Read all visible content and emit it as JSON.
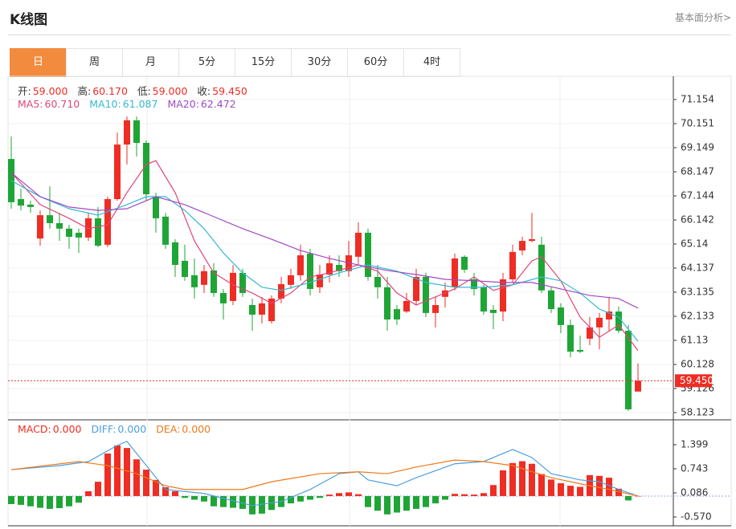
{
  "header": {
    "title": "K线图",
    "link": "基本面分析>"
  },
  "tabs": {
    "items": [
      "日",
      "周",
      "月",
      "5分",
      "15分",
      "30分",
      "60分",
      "4时"
    ],
    "active": 0
  },
  "chart_data": [
    {
      "type": "candlestick",
      "info": [
        {
          "label": "开:",
          "value": "59.000"
        },
        {
          "label": "高:",
          "value": "60.170"
        },
        {
          "label": "低:",
          "value": "59.000"
        },
        {
          "label": "收:",
          "value": "59.450"
        }
      ],
      "up_color": "#ee2d24",
      "down_color": "#1fa536",
      "open": [
        68.68,
        67.01,
        66.78,
        65.37,
        66.34,
        66.01,
        65.78,
        65.61,
        65.41,
        66.21,
        65.11,
        67.01,
        69.28,
        70.29,
        69.35,
        67.11,
        66.28,
        65.21,
        64.44,
        63.84,
        63.44,
        64.04,
        63.1,
        62.77,
        63.94,
        62.6,
        62.2,
        61.93,
        62.87,
        63.44,
        63.84,
        64.74,
        63.34,
        63.87,
        64.27,
        64.01,
        64.61,
        65.61,
        63.77,
        63.34,
        62.43,
        62.33,
        62.77,
        63.77,
        62.27,
        62.94,
        63.34,
        64.61,
        63.67,
        63.34,
        62.4,
        62.33,
        63.67,
        64.87,
        65.27,
        65.11,
        63.21,
        62.5,
        61.77,
        60.73,
        61.2,
        61.67,
        62.0,
        62.33,
        61.53,
        59.0
      ],
      "high": [
        69.62,
        67.45,
        66.94,
        66.54,
        67.54,
        66.44,
        65.94,
        65.78,
        66.44,
        66.68,
        67.11,
        69.78,
        70.45,
        70.45,
        69.45,
        67.28,
        66.44,
        65.34,
        65.11,
        64.54,
        64.27,
        64.34,
        63.27,
        64.27,
        64.11,
        62.87,
        62.94,
        63.0,
        63.77,
        64.11,
        65.11,
        64.94,
        64.27,
        64.67,
        64.67,
        65.27,
        66.04,
        65.78,
        64.27,
        63.77,
        62.6,
        63.1,
        64.11,
        63.94,
        62.94,
        63.54,
        64.74,
        64.67,
        63.94,
        63.44,
        62.6,
        63.94,
        65.11,
        65.44,
        66.44,
        65.44,
        63.34,
        62.67,
        62.0,
        61.33,
        62.1,
        62.27,
        62.94,
        62.54,
        61.77,
        60.17
      ],
      "low": [
        66.61,
        66.54,
        66.44,
        65.07,
        65.78,
        65.27,
        64.94,
        64.77,
        65.27,
        65.01,
        65.01,
        66.94,
        68.45,
        68.78,
        66.94,
        65.61,
        64.94,
        63.77,
        63.61,
        62.87,
        63.1,
        62.94,
        62.0,
        62.6,
        62.94,
        61.53,
        61.83,
        61.83,
        62.67,
        63.27,
        63.61,
        63.0,
        63.1,
        63.54,
        63.77,
        63.77,
        64.27,
        63.61,
        62.87,
        61.53,
        61.77,
        62.27,
        62.6,
        62.1,
        61.67,
        62.5,
        63.21,
        63.94,
        63.0,
        62.2,
        61.6,
        61.93,
        63.54,
        64.67,
        65.21,
        63.1,
        62.27,
        61.43,
        60.43,
        60.6,
        60.93,
        60.76,
        61.53,
        61.43,
        58.19,
        59.0
      ],
      "close": [
        66.88,
        66.74,
        66.68,
        66.34,
        66.01,
        65.78,
        65.44,
        65.41,
        66.21,
        65.07,
        67.01,
        69.28,
        70.29,
        69.35,
        67.21,
        66.21,
        65.11,
        64.27,
        63.77,
        63.34,
        64.01,
        63.1,
        62.67,
        63.94,
        63.1,
        62.2,
        62.67,
        62.87,
        63.47,
        63.84,
        64.67,
        63.27,
        63.87,
        64.34,
        64.01,
        64.67,
        65.61,
        63.77,
        63.34,
        62.0,
        62.0,
        62.77,
        63.77,
        62.27,
        62.6,
        63.21,
        64.54,
        64.07,
        63.27,
        62.33,
        62.27,
        63.67,
        64.81,
        65.27,
        65.34,
        63.21,
        62.43,
        61.77,
        60.66,
        60.66,
        61.67,
        62.07,
        62.33,
        61.53,
        58.26,
        59.45
      ],
      "series": [
        {
          "name": "MA5:",
          "current": "60.710",
          "color": "#e0457b",
          "x": [
            0,
            3,
            6,
            8,
            10,
            12,
            14,
            15,
            17,
            19,
            21,
            23,
            25,
            27,
            29,
            31,
            33,
            36,
            38,
            40,
            42,
            44,
            46,
            48,
            50,
            52,
            54,
            55,
            57,
            59,
            61,
            63,
            65
          ],
          "values": [
            68.11,
            66.78,
            66.21,
            65.78,
            65.94,
            67.28,
            68.45,
            68.61,
            67.28,
            65.27,
            63.94,
            63.44,
            63.1,
            62.67,
            63.1,
            63.77,
            63.94,
            64.27,
            64.01,
            63.1,
            62.6,
            62.94,
            63.27,
            63.77,
            63.21,
            63.44,
            64.44,
            64.61,
            63.61,
            62.1,
            61.26,
            61.77,
            60.71
          ]
        },
        {
          "name": "MA10:",
          "current": "61.087",
          "color": "#35b9d1",
          "x": [
            0,
            3,
            6,
            9,
            12,
            14,
            16,
            18,
            20,
            22,
            24,
            26,
            28,
            31,
            34,
            37,
            40,
            43,
            46,
            49,
            52,
            55,
            57,
            59,
            61,
            63,
            65
          ],
          "values": [
            67.78,
            67.11,
            66.61,
            66.34,
            66.78,
            67.11,
            67.11,
            66.54,
            65.78,
            64.77,
            63.94,
            63.34,
            63.21,
            63.54,
            63.94,
            64.27,
            64.01,
            63.54,
            63.34,
            63.34,
            63.44,
            63.77,
            63.61,
            63.1,
            62.43,
            62.1,
            61.087
          ]
        },
        {
          "name": "MA20:",
          "current": "62.472",
          "color": "#a149c6",
          "x": [
            0,
            3,
            6,
            9,
            12,
            15,
            18,
            21,
            24,
            27,
            30,
            33,
            36,
            39,
            42,
            45,
            48,
            51,
            54,
            57,
            60,
            63,
            65
          ],
          "values": [
            68.11,
            67.11,
            66.68,
            66.54,
            66.61,
            67.11,
            66.78,
            66.28,
            65.78,
            65.34,
            64.87,
            64.54,
            64.27,
            64.04,
            63.87,
            63.67,
            63.61,
            63.54,
            63.54,
            63.27,
            63.0,
            62.87,
            62.472
          ]
        }
      ],
      "last_price": {
        "value": 59.45,
        "label": "59.450"
      },
      "ylim": [
        57.856,
        72.056
      ],
      "yticks": [
        71.154,
        70.151,
        69.149,
        68.147,
        67.144,
        66.142,
        65.14,
        64.137,
        63.135,
        62.133,
        61.13,
        60.128,
        59.126,
        58.123
      ],
      "grid": true
    },
    {
      "type": "macd",
      "name": "MACD:",
      "current": "0.000",
      "up_color": "#ee2d24",
      "down_color": "#1fa536",
      "values": [
        -0.22,
        -0.24,
        -0.28,
        -0.32,
        -0.35,
        -0.33,
        -0.28,
        -0.18,
        0.13,
        0.39,
        1.16,
        1.38,
        1.31,
        1.0,
        0.72,
        0.44,
        0.24,
        0.13,
        -0.05,
        -0.1,
        -0.15,
        -0.28,
        -0.3,
        -0.32,
        -0.35,
        -0.5,
        -0.48,
        -0.38,
        -0.3,
        -0.2,
        -0.15,
        -0.1,
        -0.05,
        0.04,
        0.08,
        0.1,
        0.05,
        -0.3,
        -0.4,
        -0.5,
        -0.45,
        -0.4,
        -0.35,
        -0.3,
        -0.2,
        -0.1,
        0.06,
        0.05,
        0.04,
        0.08,
        0.3,
        0.7,
        0.9,
        0.95,
        0.88,
        0.6,
        0.45,
        0.35,
        0.28,
        0.25,
        0.57,
        0.55,
        0.5,
        0.2,
        -0.12,
        0.0
      ],
      "series": [
        {
          "name": "DIFF:",
          "current": "0.000",
          "color": "#4a9fe0",
          "x": [
            0,
            5,
            8,
            11,
            12,
            16,
            20,
            25,
            28,
            31,
            34,
            36,
            37,
            40,
            42,
            46,
            49,
            51,
            52,
            54,
            56,
            59,
            61,
            63,
            65
          ],
          "values": [
            0.72,
            0.83,
            0.94,
            1.38,
            1.49,
            0.18,
            0.07,
            -0.26,
            -0.15,
            0.18,
            0.61,
            0.66,
            0.44,
            0.28,
            0.5,
            0.88,
            0.94,
            1.16,
            1.27,
            1.05,
            0.61,
            0.44,
            0.39,
            0.18,
            0.0
          ]
        },
        {
          "name": "DEA:",
          "current": "0.000",
          "color": "#f07a1a",
          "x": [
            0,
            7,
            10,
            13,
            16,
            18,
            24,
            27,
            32,
            36,
            39,
            42,
            46,
            49,
            52,
            56,
            60,
            62,
            65
          ],
          "values": [
            0.72,
            0.94,
            0.83,
            0.61,
            0.28,
            0.18,
            0.18,
            0.39,
            0.61,
            0.66,
            0.61,
            0.79,
            0.98,
            0.94,
            0.83,
            0.5,
            0.28,
            0.18,
            0.0
          ]
        }
      ],
      "ylim": [
        -0.811,
        2.034
      ],
      "yticks": [
        1.399,
        0.743,
        0.086,
        {
          "value": -0.57,
          "label": "-0.570"
        }
      ]
    }
  ]
}
